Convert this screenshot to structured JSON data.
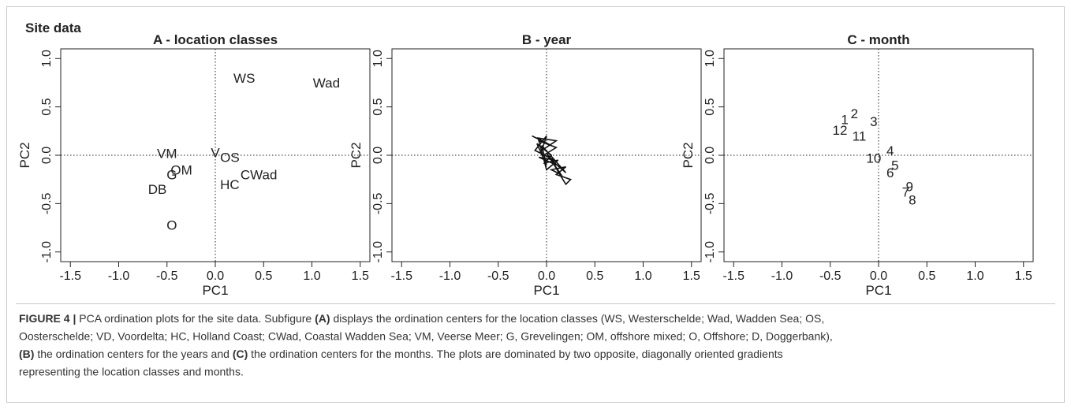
{
  "heading": "Site data",
  "chart_data": [
    {
      "type": "text_scatter",
      "title": "A - location classes",
      "xlabel": "PC1",
      "ylabel": "PC2",
      "labels": [
        "WS",
        "Wad",
        "VM",
        "V",
        "OS",
        "OM",
        "G",
        "DB",
        "HC",
        "CWad",
        "O"
      ],
      "x": [
        0.3,
        1.15,
        -0.5,
        0.0,
        0.15,
        -0.35,
        -0.45,
        -0.6,
        0.15,
        0.45,
        -0.45
      ],
      "y": [
        0.8,
        0.75,
        0.02,
        0.03,
        -0.02,
        -0.15,
        -0.2,
        -0.35,
        -0.3,
        -0.2,
        -0.72
      ],
      "color": "#222222",
      "xlim": [
        -1.6,
        1.6
      ],
      "ylim": [
        -1.1,
        1.1
      ],
      "xticks": [
        -1.5,
        {
          "value": -1,
          "label": "-1.0"
        },
        -0.5,
        {
          "value": 0,
          "label": "0.0"
        },
        0.5,
        {
          "value": 1,
          "label": "1.0"
        },
        1.5
      ],
      "yticks": [
        {
          "value": -1,
          "label": "-1.0"
        },
        -0.5,
        {
          "value": 0,
          "label": "0.0"
        },
        0.5,
        {
          "value": 1,
          "label": "1.0"
        }
      ]
    },
    {
      "type": "line",
      "title": "B - year",
      "xlabel": "PC1",
      "ylabel": "PC2",
      "x": [
        -0.15,
        0.05,
        -0.1,
        0.1,
        -0.05,
        0.0,
        -0.12,
        0.08,
        -0.08,
        0.1,
        0.0,
        0.15,
        0.05,
        0.2,
        0.1,
        0.25,
        0.2,
        0.15,
        0.05,
        0.2,
        -0.05,
        0.0,
        -0.1,
        0.05,
        -0.02,
        0.12,
        0.0,
        -0.08,
        0.1,
        -0.03
      ],
      "y": [
        0.2,
        0.1,
        0.18,
        0.15,
        0.05,
        0.2,
        0.05,
        -0.05,
        -0.02,
        -0.1,
        0.02,
        -0.2,
        -0.15,
        -0.12,
        -0.2,
        -0.25,
        -0.3,
        -0.22,
        -0.05,
        -0.18,
        0.1,
        -0.1,
        0.12,
        0.0,
        -0.08,
        -0.05,
        -0.15,
        0.15,
        0.08,
        0.0
      ],
      "color": "#111111",
      "xlim": [
        -1.6,
        1.6
      ],
      "ylim": [
        -1.1,
        1.1
      ],
      "xticks": [
        -1.5,
        {
          "value": -1,
          "label": "-1.0"
        },
        -0.5,
        {
          "value": 0,
          "label": "0.0"
        },
        0.5,
        {
          "value": 1,
          "label": "1.0"
        },
        1.5
      ],
      "yticks": [
        {
          "value": -1,
          "label": "-1.0"
        },
        -0.5,
        {
          "value": 0,
          "label": "0.0"
        },
        0.5,
        {
          "value": 1,
          "label": "1.0"
        }
      ]
    },
    {
      "type": "text_scatter",
      "title": "C - month",
      "xlabel": "PC1",
      "ylabel": "PC2",
      "labels": [
        "1",
        "2",
        "3",
        "4",
        "5",
        "6",
        "7",
        "8",
        "9",
        "10",
        "11",
        "12"
      ],
      "x": [
        -0.35,
        -0.25,
        -0.05,
        0.12,
        0.17,
        0.12,
        0.28,
        0.35,
        0.32,
        -0.05,
        -0.2,
        -0.4
      ],
      "y": [
        0.37,
        0.43,
        0.35,
        0.05,
        -0.1,
        -0.18,
        -0.38,
        -0.46,
        -0.32,
        -0.03,
        0.2,
        0.26
      ],
      "color": "#222222",
      "xlim": [
        -1.6,
        1.6
      ],
      "ylim": [
        -1.1,
        1.1
      ],
      "xticks": [
        -1.5,
        {
          "value": -1,
          "label": "-1.0"
        },
        -0.5,
        {
          "value": 0,
          "label": "0.0"
        },
        0.5,
        {
          "value": 1,
          "label": "1.0"
        },
        1.5
      ],
      "yticks": [
        {
          "value": -1,
          "label": "-1.0"
        },
        -0.5,
        {
          "value": 0,
          "label": "0.0"
        },
        0.5,
        {
          "value": 1,
          "label": "1.0"
        }
      ]
    }
  ],
  "caption": [
    [
      {
        "text": "FIGURE 4 | ",
        "bold": true
      },
      {
        "text": "PCA ordination plots for the site data. Subfigure ",
        "bold": false
      },
      {
        "text": "(A)",
        "bold": true
      },
      {
        "text": " displays the ordination centers for the location classes (WS, Westerschelde; Wad, Wadden Sea; OS,",
        "bold": false
      }
    ],
    [
      {
        "text": "Oosterschelde; VD, Voordelta; HC, Holland Coast; CWad, Coastal Wadden Sea; VM, Veerse Meer; G, Grevelingen; OM, offshore mixed; O, Offshore; D, Doggerbank),",
        "bold": false
      }
    ],
    [
      {
        "text": "(B)",
        "bold": true
      },
      {
        "text": " the ordination centers for the years and ",
        "bold": false
      },
      {
        "text": "(C)",
        "bold": true
      },
      {
        "text": " the ordination centers for the months. The plots are dominated by two opposite, diagonally oriented gradients",
        "bold": false
      }
    ],
    [
      {
        "text": "representing the location classes and months.",
        "bold": false
      }
    ]
  ]
}
